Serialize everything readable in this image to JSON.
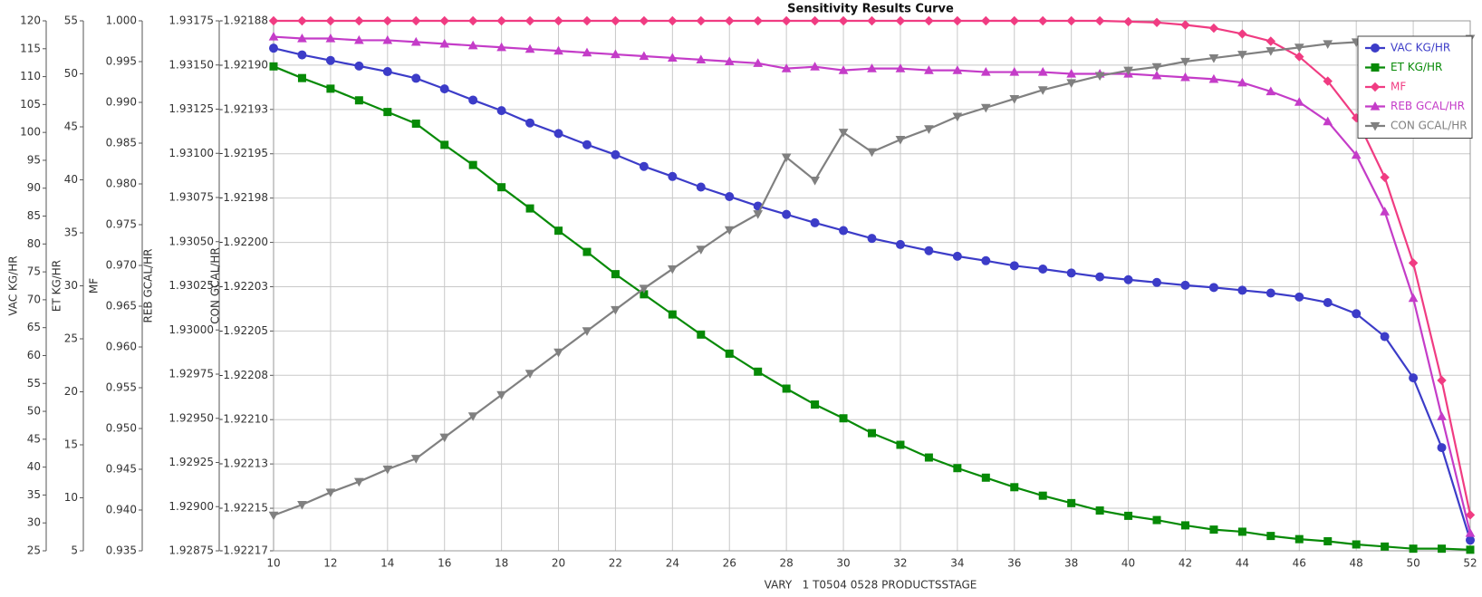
{
  "chart_data": {
    "type": "line",
    "title": "Sensitivity Results Curve",
    "x_label": "VARY   1 T0504 0528 PRODUCTSSTAGE",
    "x": [
      10,
      11,
      12,
      13,
      14,
      15,
      16,
      17,
      18,
      19,
      20,
      21,
      22,
      23,
      24,
      25,
      26,
      27,
      28,
      29,
      30,
      31,
      32,
      33,
      34,
      35,
      36,
      37,
      38,
      39,
      40,
      41,
      42,
      43,
      44,
      45,
      46,
      47,
      48,
      49,
      50,
      51,
      52
    ],
    "xlim": [
      10,
      52
    ],
    "xticks": [
      10,
      12,
      14,
      16,
      18,
      20,
      22,
      24,
      26,
      28,
      30,
      32,
      34,
      36,
      38,
      40,
      42,
      44,
      46,
      48,
      50,
      52
    ],
    "axes": [
      {
        "label": "VAC KG/HR",
        "ylim": [
          25,
          120
        ],
        "yticks": [
          25,
          30,
          35,
          40,
          45,
          50,
          55,
          60,
          65,
          70,
          75,
          80,
          85,
          90,
          95,
          100,
          105,
          110,
          115,
          120
        ]
      },
      {
        "label": "ET KG/HR",
        "ylim": [
          5,
          55
        ],
        "yticks": [
          5,
          10,
          15,
          20,
          25,
          30,
          35,
          40,
          45,
          50,
          55
        ]
      },
      {
        "label": "MF",
        "ylim": [
          0.935,
          1.0
        ],
        "yticks": [
          0.935,
          {
            "value": 0.94,
            "label": "0.940"
          },
          0.945,
          {
            "value": 0.95,
            "label": "0.950"
          },
          0.955,
          {
            "value": 0.96,
            "label": "0.960"
          },
          0.965,
          {
            "value": 0.97,
            "label": "0.970"
          },
          0.975,
          {
            "value": 0.98,
            "label": "0.980"
          },
          0.985,
          {
            "value": 0.99,
            "label": "0.990"
          },
          0.995,
          {
            "value": 1.0,
            "label": "1.000"
          }
        ]
      },
      {
        "label": "REB GCAL/HR",
        "ylim": [
          1.92875,
          1.93175
        ],
        "yticks": [
          1.92875,
          {
            "value": 1.929,
            "label": "1.92900"
          },
          1.92925,
          {
            "value": 1.9295,
            "label": "1.92950"
          },
          1.92975,
          {
            "value": 1.93,
            "label": "1.93000"
          },
          1.93025,
          {
            "value": 1.9305,
            "label": "1.93050"
          },
          1.93075,
          {
            "value": 1.931,
            "label": "1.93100"
          },
          1.93125,
          {
            "value": 1.9315,
            "label": "1.93150"
          },
          1.93175
        ]
      },
      {
        "label": "CON GCAL/HR",
        "ylim": [
          -1.922174,
          -1.921875
        ],
        "grid": true,
        "yticks": [
          {
            "value": -1.922174,
            "label": "-1.92217"
          },
          -1.92215,
          {
            "value": -1.922125,
            "label": "-1.92213"
          },
          {
            "value": -1.9221,
            "label": "-1.92210"
          },
          {
            "value": -1.922075,
            "label": "-1.92208"
          },
          -1.92205,
          {
            "value": -1.922025,
            "label": "-1.92203"
          },
          {
            "value": -1.922,
            "label": "-1.92200"
          },
          {
            "value": -1.921975,
            "label": "-1.92198"
          },
          -1.92195,
          {
            "value": -1.921925,
            "label": "-1.92193"
          },
          {
            "value": -1.9219,
            "label": "-1.92190"
          },
          {
            "value": -1.921875,
            "label": "-1.92188"
          }
        ]
      }
    ],
    "legend": "upper right",
    "series": [
      {
        "name": "VAC KG/HR",
        "color": "#3c3cc8",
        "marker": "circle",
        "axis": 0,
        "values": [
          115.1,
          113.9,
          112.9,
          111.9,
          110.9,
          109.7,
          107.8,
          105.8,
          103.9,
          101.7,
          99.8,
          97.8,
          96.0,
          93.9,
          92.1,
          90.2,
          88.5,
          86.8,
          85.3,
          83.8,
          82.4,
          81.0,
          79.9,
          78.8,
          77.8,
          77.0,
          76.1,
          75.5,
          74.8,
          74.1,
          73.6,
          73.1,
          72.6,
          72.2,
          71.7,
          71.2,
          70.5,
          69.5,
          67.5,
          63.4,
          56.0,
          43.5,
          26.9
        ]
      },
      {
        "name": "ET KG/HR",
        "color": "#078a07",
        "marker": "square",
        "axis": 1,
        "values": [
          50.7,
          49.6,
          48.6,
          47.5,
          46.4,
          45.3,
          43.3,
          41.4,
          39.3,
          37.3,
          35.2,
          33.2,
          31.1,
          29.2,
          27.3,
          25.4,
          23.6,
          21.9,
          20.3,
          18.8,
          17.5,
          16.1,
          15.0,
          13.8,
          12.8,
          11.9,
          11.0,
          10.2,
          9.5,
          8.8,
          8.3,
          7.9,
          7.4,
          7.0,
          6.8,
          6.4,
          6.1,
          5.9,
          5.6,
          5.4,
          5.2,
          5.2,
          5.1
        ]
      },
      {
        "name": "MF",
        "color": "#f03c82",
        "marker": "diamond",
        "axis": 2,
        "values": [
          1.0,
          1.0,
          1.0,
          1.0,
          1.0,
          1.0,
          1.0,
          1.0,
          1.0,
          1.0,
          1.0,
          1.0,
          1.0,
          1.0,
          1.0,
          1.0,
          1.0,
          1.0,
          1.0,
          1.0,
          1.0,
          1.0,
          1.0,
          1.0,
          1.0,
          1.0,
          1.0,
          1.0,
          1.0,
          1.0,
          0.9999,
          0.9998,
          0.9995,
          0.9991,
          0.9984,
          0.9975,
          0.9956,
          0.9926,
          0.9881,
          0.9808,
          0.9703,
          0.9559,
          0.9394
        ]
      },
      {
        "name": "REB GCAL/HR",
        "color": "#c43cc8",
        "marker": "triangle-up",
        "axis": 3,
        "values": [
          1.93166,
          1.93165,
          1.93165,
          1.93164,
          1.93164,
          1.93163,
          1.93162,
          1.93161,
          1.9316,
          1.93159,
          1.93158,
          1.93157,
          1.93156,
          1.93155,
          1.93154,
          1.93153,
          1.93152,
          1.93151,
          1.93148,
          1.93149,
          1.93147,
          1.93148,
          1.93148,
          1.93147,
          1.93147,
          1.93146,
          1.93146,
          1.93146,
          1.93145,
          1.93145,
          1.93145,
          1.93144,
          1.93143,
          1.93142,
          1.9314,
          1.93135,
          1.93129,
          1.93118,
          1.93099,
          1.93067,
          1.93018,
          1.92951,
          1.92885
        ]
      },
      {
        "name": "CON GCAL/HR",
        "color": "#808080",
        "marker": "triangle-down",
        "axis": 4,
        "values": [
          -1.922154,
          -1.922148,
          -1.922141,
          -1.922135,
          -1.922128,
          -1.922122,
          -1.92211,
          -1.922098,
          -1.922086,
          -1.922074,
          -1.922062,
          -1.92205,
          -1.922038,
          -1.922026,
          -1.922015,
          -1.922004,
          -1.921993,
          -1.921984,
          -1.921952,
          -1.921965,
          -1.921938,
          -1.921949,
          -1.921942,
          -1.921936,
          -1.921929,
          -1.921924,
          -1.921919,
          -1.921914,
          -1.92191,
          -1.921906,
          -1.921903,
          -1.921901,
          -1.921898,
          -1.921896,
          -1.921894,
          -1.921892,
          -1.92189,
          -1.921888,
          -1.921887,
          -1.921887,
          -1.921886,
          -1.921886,
          -1.921885
        ]
      }
    ]
  }
}
